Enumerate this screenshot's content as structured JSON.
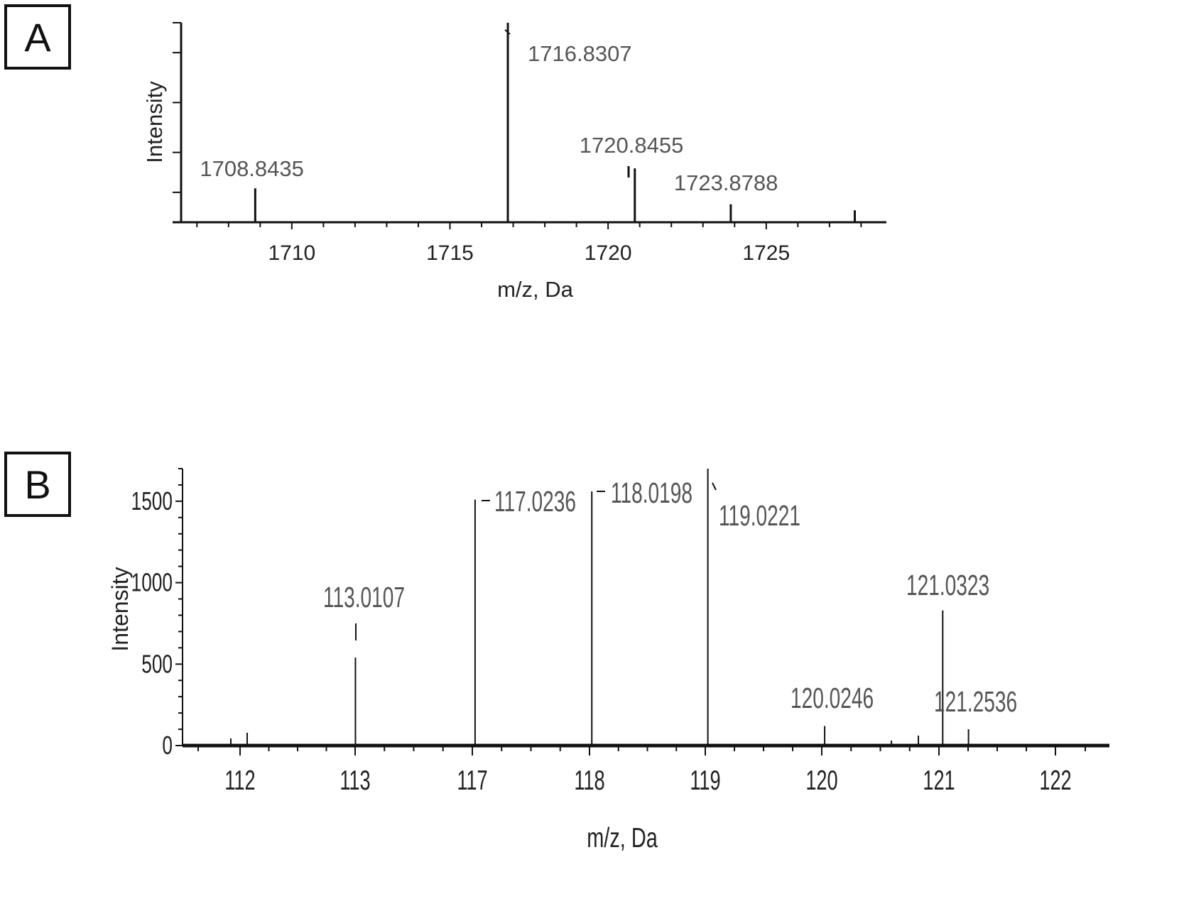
{
  "panels": {
    "a_label": "A",
    "b_label": "B"
  },
  "colors": {
    "axis": "#111111",
    "peak": "#111111",
    "peak_label": "#555555",
    "tick_label": "#222222"
  },
  "chart_data": [
    {
      "type": "bar",
      "panel": "A",
      "title": "",
      "xlabel": "m/z, Da",
      "ylabel": "Intensity",
      "xlim": [
        1706.5,
        1728.8
      ],
      "ylim": [
        0,
        1.0
      ],
      "x_ticks": [
        1710,
        1715,
        1720,
        1725
      ],
      "x_tick_labels": [
        "1710",
        "1715",
        "1720",
        "1725"
      ],
      "y_tick_labels_shown": false,
      "peaks": [
        {
          "x": 1708.8435,
          "y": 0.17,
          "label": "1708.8435"
        },
        {
          "x": 1716.8307,
          "y": 1.0,
          "label": "1716.8307"
        },
        {
          "x": 1720.8455,
          "y": 0.27,
          "label": "1720.8455"
        },
        {
          "x": 1723.8788,
          "y": 0.09,
          "label": "1723.8788"
        },
        {
          "x": 1727.8,
          "y": 0.06,
          "label": ""
        }
      ]
    },
    {
      "type": "bar",
      "panel": "B",
      "title": "",
      "xlabel": "m/z, Da",
      "ylabel": "Intensity",
      "ylim": [
        0,
        1700
      ],
      "y_ticks": [
        0,
        500,
        1000,
        1500
      ],
      "y_tick_labels": [
        "0",
        "500",
        "1000",
        "1500"
      ],
      "x_tick_labels": [
        "112",
        "113",
        "117",
        "118",
        "119",
        "120",
        "121",
        "122"
      ],
      "peaks": [
        {
          "x": 113.0107,
          "y": 540,
          "label": "113.0107"
        },
        {
          "x": 117.0236,
          "y": 1510,
          "label": "117.0236"
        },
        {
          "x": 118.0198,
          "y": 1560,
          "label": "118.0198"
        },
        {
          "x": 119.0221,
          "y": 1700,
          "label": "119.0221"
        },
        {
          "x": 120.0246,
          "y": 120,
          "label": "120.0246"
        },
        {
          "x": 121.0323,
          "y": 830,
          "label": "121.0323"
        },
        {
          "x": 121.2536,
          "y": 100,
          "label": "121.2536"
        }
      ]
    }
  ]
}
